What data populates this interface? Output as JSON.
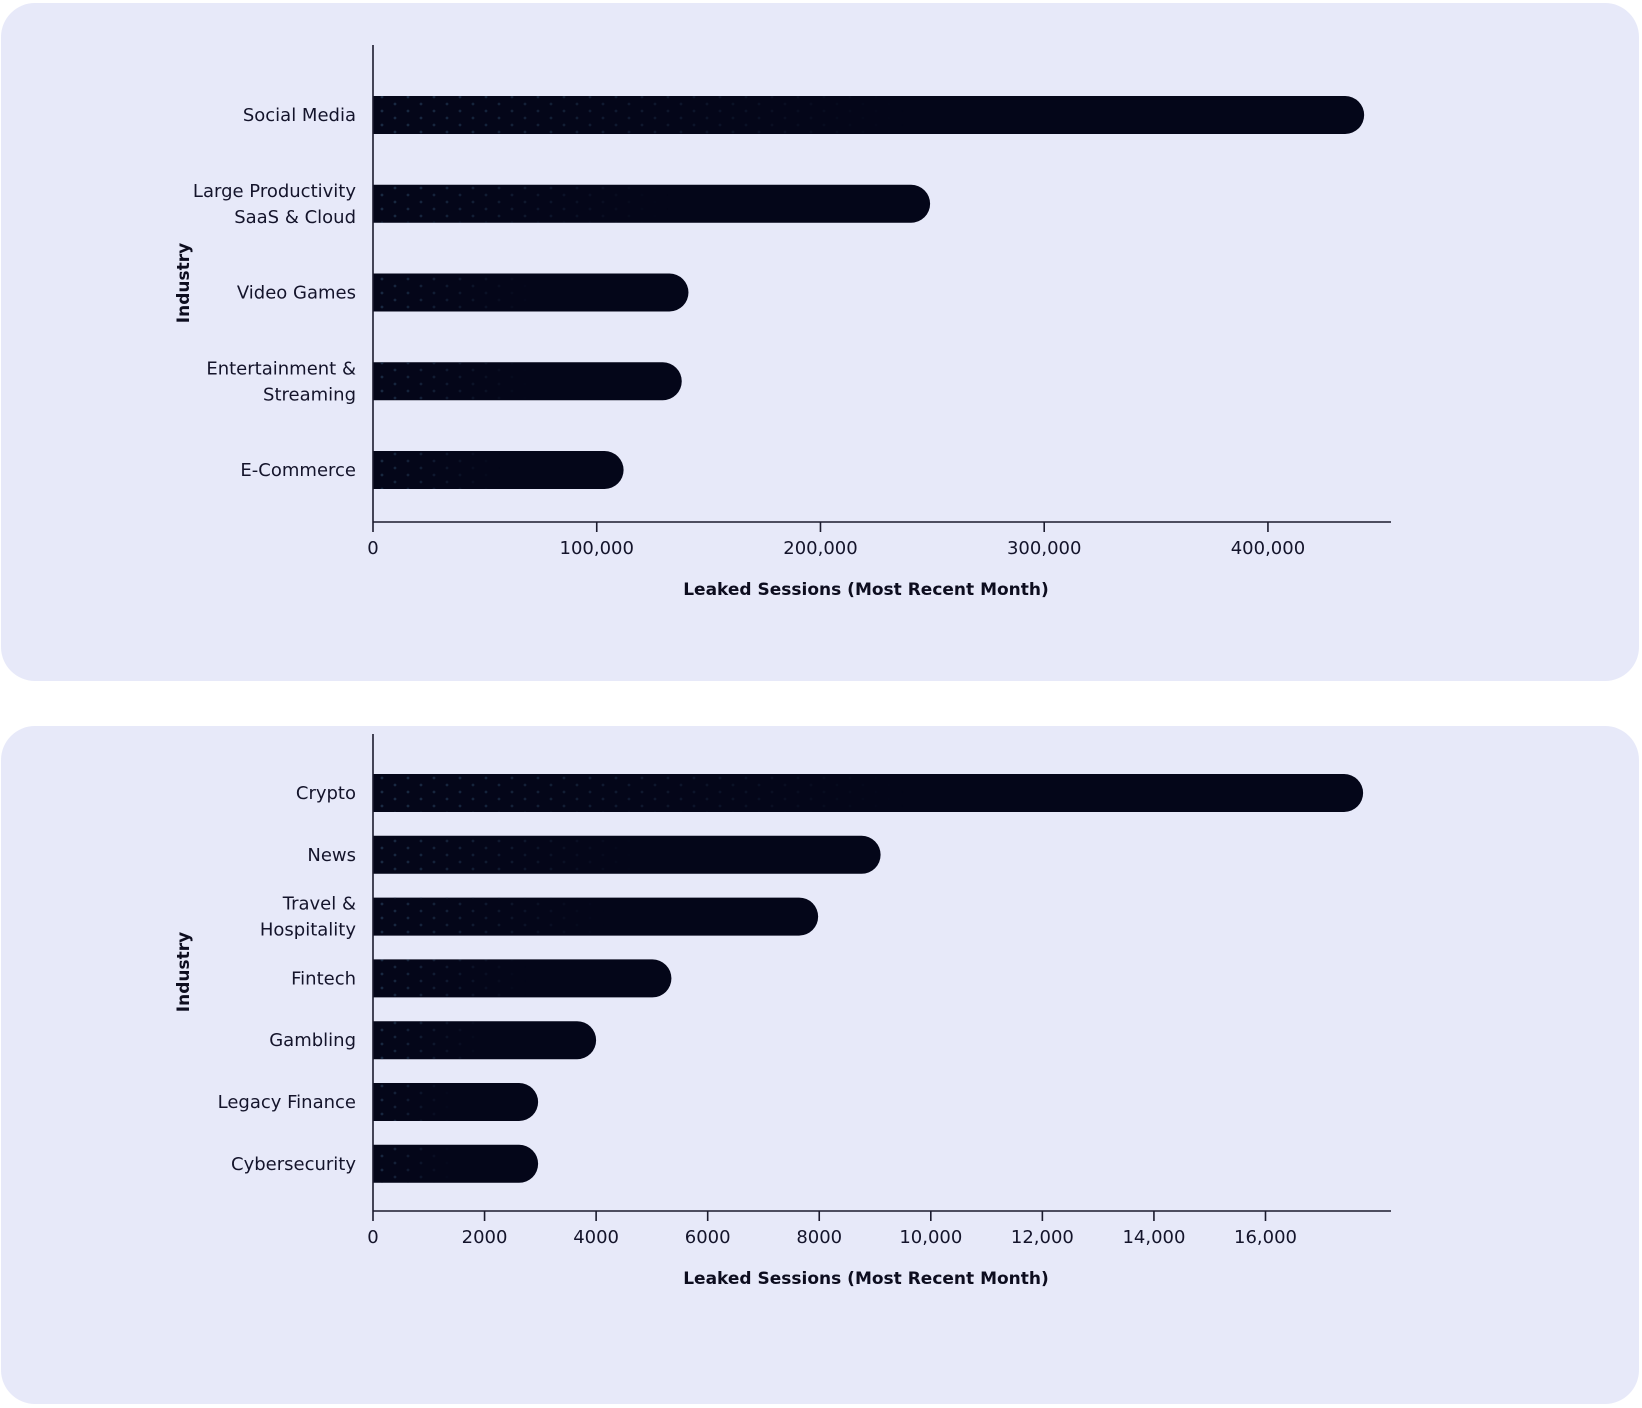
{
  "chart_data": [
    {
      "type": "bar",
      "orientation": "horizontal",
      "categories": [
        [
          "Social Media"
        ],
        [
          "Large Productivity",
          "SaaS & Cloud"
        ],
        [
          "Video Games"
        ],
        [
          "Entertainment &",
          "Streaming"
        ],
        [
          "E-Commerce"
        ]
      ],
      "values": [
        443000,
        249000,
        141000,
        138000,
        112000
      ],
      "xlabel": "Leaked Sessions (Most Recent Month)",
      "ylabel": "Industry",
      "xlim": [
        0,
        455000
      ],
      "xticks": [
        0,
        100000,
        200000,
        300000,
        400000
      ],
      "xtick_labels": [
        "0",
        "100,000",
        "200,000",
        "300,000",
        "400,000"
      ],
      "grid": false,
      "bar_color": "#040619"
    },
    {
      "type": "bar",
      "orientation": "horizontal",
      "categories": [
        [
          "Crypto"
        ],
        [
          "News"
        ],
        [
          "Travel &",
          "Hospitality"
        ],
        [
          "Fintech"
        ],
        [
          "Gambling"
        ],
        [
          "Legacy Finance"
        ],
        [
          "Cybersecurity"
        ]
      ],
      "values": [
        17750,
        9100,
        7980,
        5350,
        4000,
        2960,
        2960
      ],
      "xlabel": "Leaked Sessions (Most Recent Month)",
      "ylabel": "Industry",
      "xlim": [
        0,
        18250
      ],
      "xticks": [
        0,
        2000,
        4000,
        6000,
        8000,
        10000,
        12000,
        14000,
        16000
      ],
      "xtick_labels": [
        "0",
        "2000",
        "4000",
        "6000",
        "8000",
        "10,000",
        "12,000",
        "14,000",
        "16,000"
      ],
      "grid": false,
      "bar_color": "#040619"
    }
  ]
}
